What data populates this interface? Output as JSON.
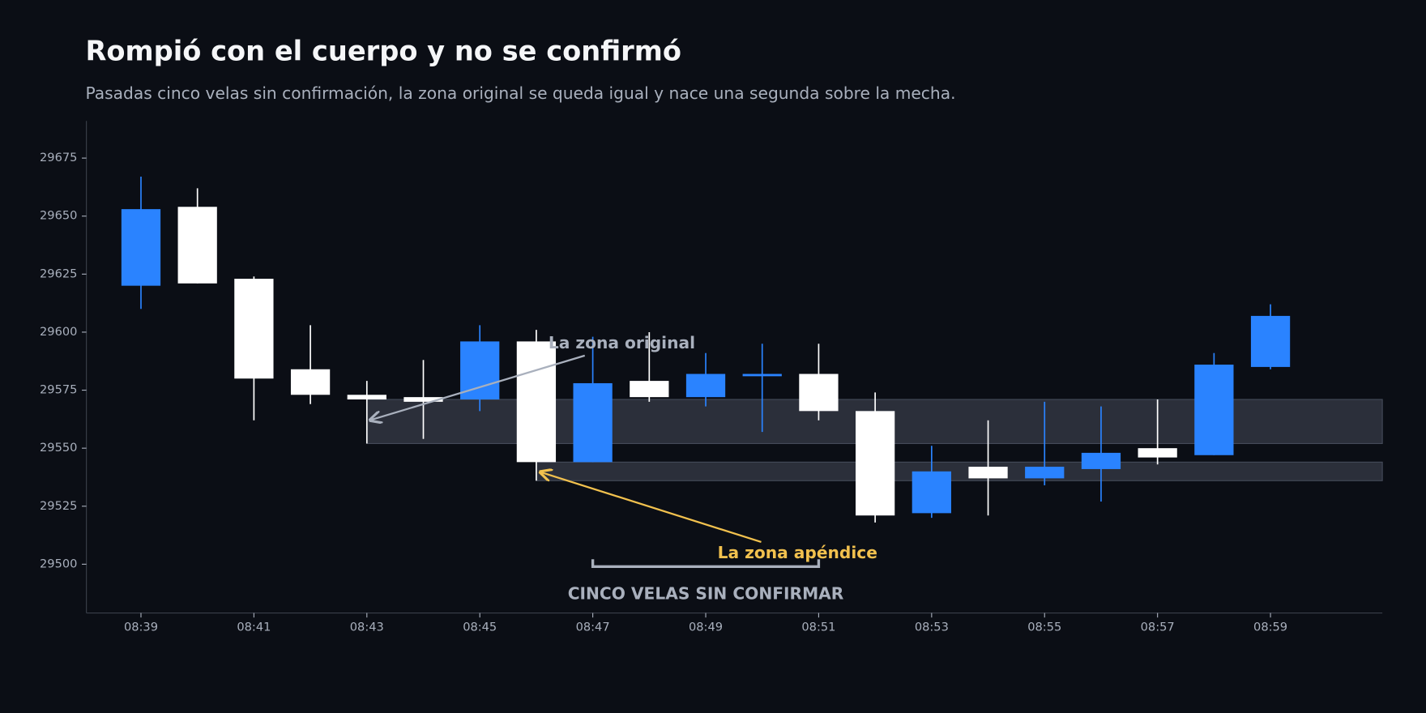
{
  "chart_data": {
    "type": "candlestick",
    "title": "Rompió con el cuerpo y no se confirmó",
    "subtitle": "Pasadas cinco velas sin confirmación, la zona original se queda igual y nace una segunda sobre la mecha.",
    "categories": [
      "08:39",
      null,
      "08:41",
      null,
      "08:43",
      null,
      "08:45",
      null,
      "08:47",
      null,
      "08:49",
      null,
      "08:51",
      null,
      "08:53",
      null,
      "08:55",
      null,
      "08:57",
      null,
      "08:59"
    ],
    "open": [
      29620,
      29654,
      29623,
      29584,
      29573,
      29572,
      29571,
      29596,
      29544,
      29579,
      29572,
      29581,
      29582,
      29566,
      29522,
      29542,
      29537,
      29541,
      29550,
      29547,
      29585
    ],
    "high": [
      29667,
      29662,
      29624,
      29603,
      29579,
      29588,
      29603,
      29601,
      29598,
      29600,
      29591,
      29595,
      29595,
      29574,
      29551,
      29562,
      29570,
      29568,
      29571,
      29591,
      29612
    ],
    "low": [
      29610,
      29621,
      29562,
      29569,
      29552,
      29554,
      29566,
      29536,
      29544,
      29570,
      29568,
      29557,
      29562,
      29518,
      29520,
      29521,
      29534,
      29527,
      29543,
      29547,
      29584
    ],
    "close": [
      29653,
      29621,
      29580,
      29573,
      29571,
      29570,
      29596,
      29544,
      29578,
      29572,
      29582,
      29582,
      29566,
      29521,
      29540,
      29537,
      29542,
      29548,
      29546,
      29586,
      29607
    ],
    "up_color": "#2a83ff",
    "down_color": "#ffffff",
    "ylim": [
      29479,
      29691
    ],
    "yticks": [
      29500,
      29525,
      29550,
      29575,
      29600,
      29625,
      29650,
      29675
    ],
    "zones": [
      {
        "low": 29552,
        "high": 29571
      },
      {
        "low": 29536,
        "high": 29544
      }
    ],
    "annotations": [
      {
        "text": "La zona original",
        "color": "#a9b0bd"
      },
      {
        "text": "La zona apéndice",
        "color": "#f2c14e"
      }
    ],
    "bracket_label": "CINCO VELAS SIN CONFIRMAR"
  }
}
